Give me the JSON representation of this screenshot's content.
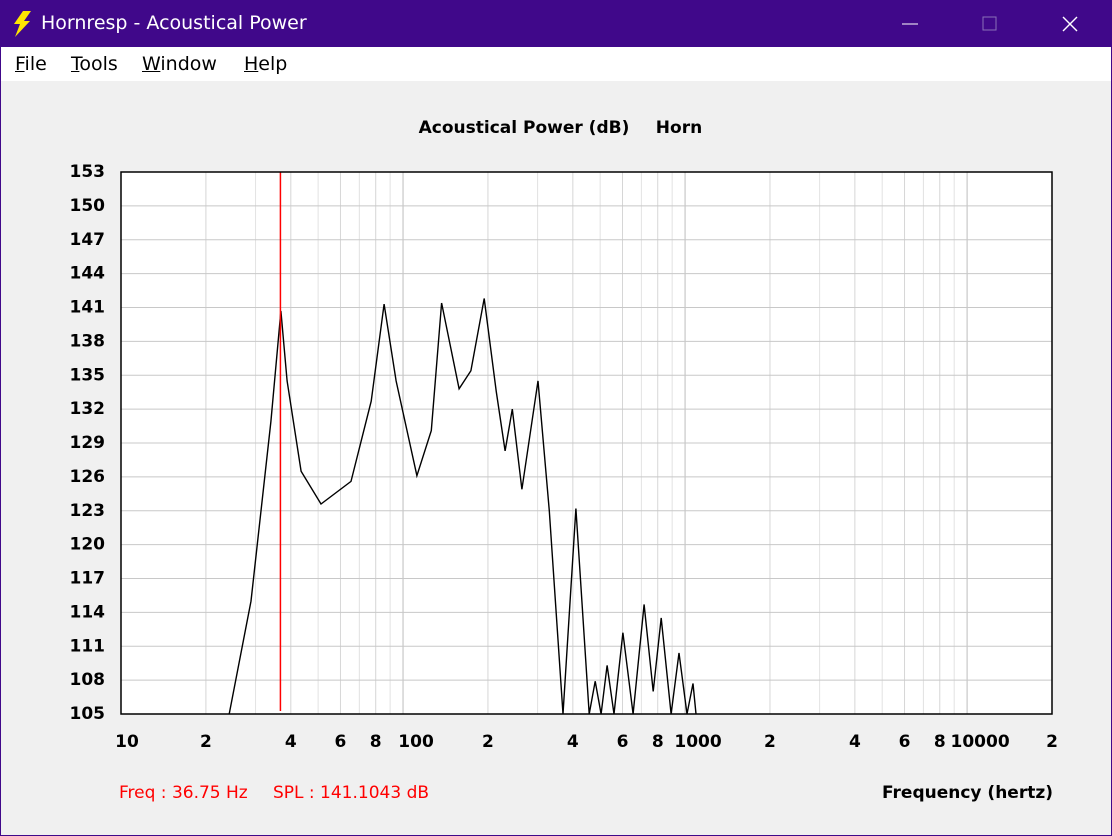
{
  "window": {
    "title": "Hornresp - Acoustical Power",
    "menu": [
      "File",
      "Tools",
      "Window",
      "Help"
    ]
  },
  "chart_data": {
    "type": "line",
    "title": "Acoustical Power (dB)",
    "subtitle": "Horn",
    "x_label": "Frequency (hertz)",
    "xscale": "log",
    "grid": true,
    "color": "#000000",
    "xlim": [
      10,
      20000
    ],
    "ylim": [
      105,
      153
    ],
    "xticks": [
      10,
      {
        "value": 20,
        "label": "2"
      },
      {
        "value": 40,
        "label": "4"
      },
      {
        "value": 60,
        "label": "6"
      },
      {
        "value": 80,
        "label": "8"
      },
      100,
      {
        "value": 200,
        "label": "2"
      },
      {
        "value": 400,
        "label": "4"
      },
      {
        "value": 600,
        "label": "6"
      },
      {
        "value": 800,
        "label": "8"
      },
      1000,
      {
        "value": 2000,
        "label": "2"
      },
      {
        "value": 4000,
        "label": "4"
      },
      {
        "value": 6000,
        "label": "6"
      },
      {
        "value": 8000,
        "label": "8"
      },
      10000,
      {
        "value": 20000,
        "label": "2"
      }
    ],
    "yticks": [
      105,
      108,
      111,
      114,
      117,
      120,
      123,
      126,
      129,
      132,
      135,
      138,
      141,
      144,
      147,
      150,
      153
    ],
    "x": [
      24.2,
      28.9,
      34.0,
      36.9,
      38.8,
      43.5,
      51.2,
      65.4,
      77.1,
      85.7,
      94.5,
      112,
      126,
      137,
      158,
      174,
      194,
      214,
      230,
      244,
      264,
      301,
      330,
      369,
      410,
      457,
      480,
      504,
      529,
      560,
      602,
      654,
      716,
      771,
      823,
      892,
      952,
      1016,
      1067,
      1093
    ],
    "values": [
      105,
      115.0,
      130.9,
      140.7,
      134.5,
      126.5,
      123.6,
      125.6,
      132.7,
      141.3,
      134.5,
      126.1,
      130.1,
      141.4,
      133.8,
      135.4,
      141.8,
      133.6,
      128.3,
      132.0,
      124.9,
      134.5,
      123.0,
      105,
      123.2,
      105,
      107.9,
      105,
      109.3,
      105,
      112.2,
      105,
      114.7,
      107.0,
      113.5,
      105,
      110.4,
      105,
      107.7,
      105
    ],
    "cursor": {
      "x": 36.75,
      "color": "#ff0000",
      "x_label": "Freq : 36.75 Hz",
      "y_label": "SPL : 141.1043 dB"
    }
  }
}
